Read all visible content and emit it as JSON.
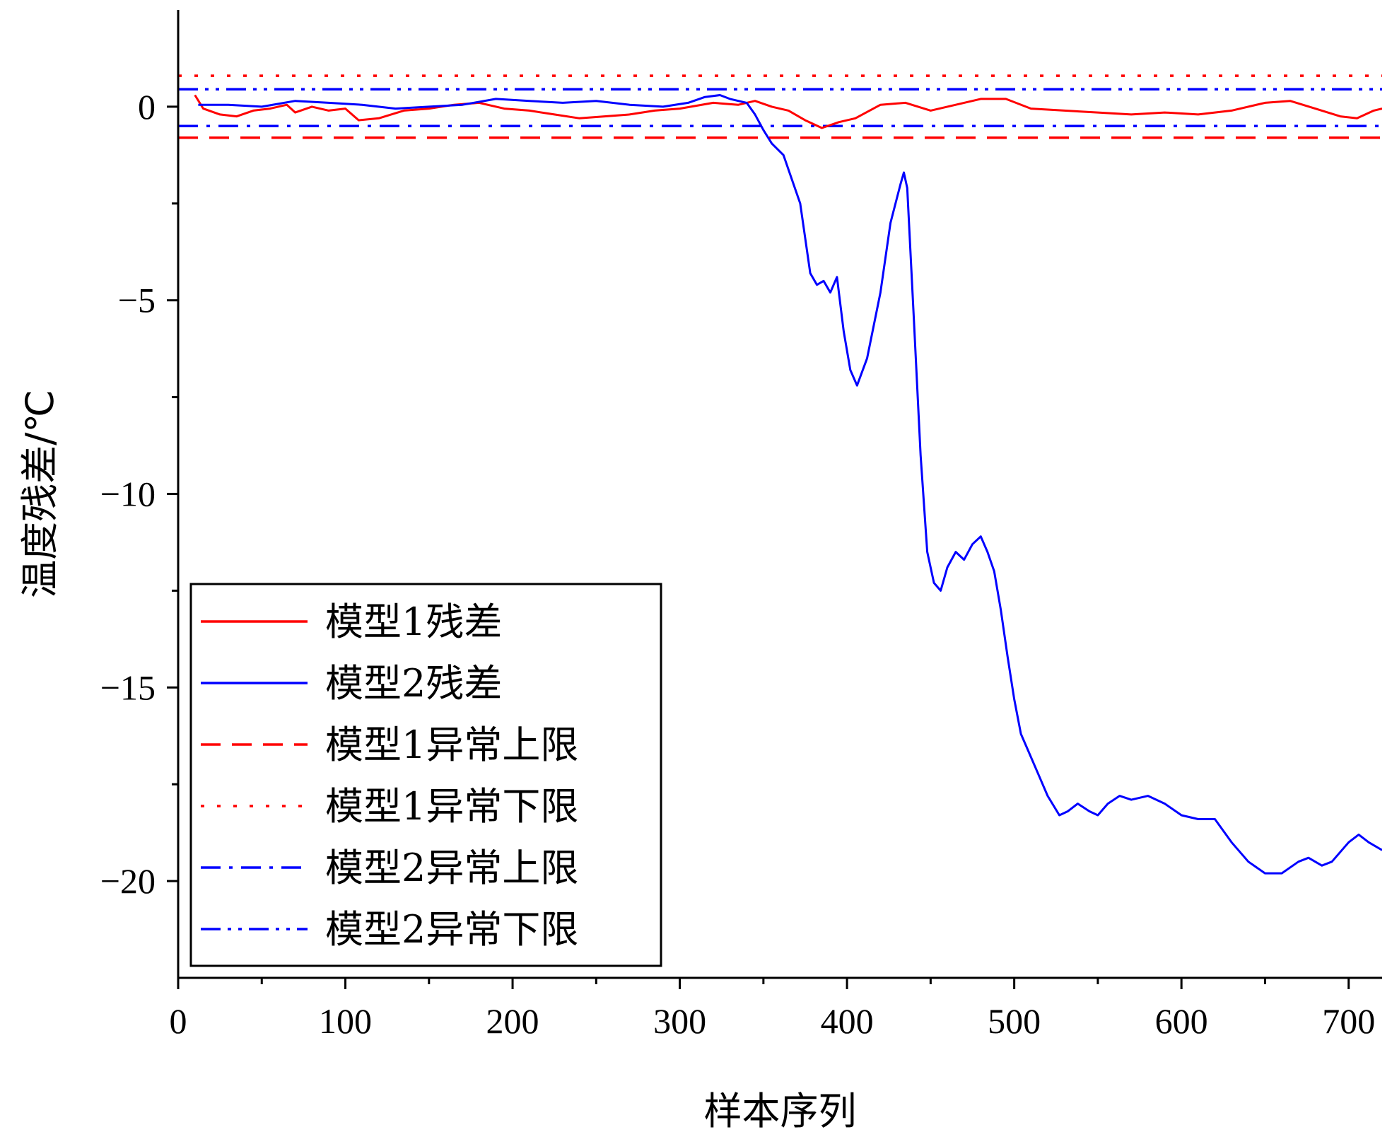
{
  "chart_data": {
    "type": "line",
    "title": "",
    "xlabel": "样本序列",
    "ylabel": "温度残差/℃",
    "xlim": [
      0,
      720
    ],
    "ylim": [
      -22.5,
      2.5
    ],
    "xticks": [
      0,
      100,
      200,
      300,
      400,
      500,
      600,
      700
    ],
    "xtick_labels": [
      "0",
      "100",
      "200",
      "300",
      "400",
      "500",
      "600",
      "700"
    ],
    "yticks": [
      0,
      -5,
      -10,
      -15,
      -20
    ],
    "ytick_labels": [
      "0",
      "−5",
      "−10",
      "−15",
      "−20"
    ],
    "grid": false,
    "legend_position": "lower-left",
    "series": [
      {
        "name": "模型1残差",
        "color": "#ff0000",
        "style": "solid",
        "x": [
          10,
          15,
          25,
          35,
          45,
          55,
          65,
          70,
          80,
          90,
          100,
          108,
          120,
          135,
          150,
          165,
          180,
          195,
          210,
          225,
          240,
          255,
          270,
          285,
          300,
          320,
          335,
          345,
          355,
          365,
          375,
          385,
          395,
          405,
          420,
          435,
          450,
          465,
          480,
          495,
          510,
          530,
          550,
          570,
          590,
          610,
          630,
          650,
          665,
          680,
          695,
          705,
          715,
          720
        ],
        "values": [
          0.3,
          -0.05,
          -0.2,
          -0.25,
          -0.1,
          -0.05,
          0.05,
          -0.15,
          0.0,
          -0.1,
          -0.05,
          -0.35,
          -0.3,
          -0.1,
          -0.05,
          0.05,
          0.1,
          -0.05,
          -0.1,
          -0.2,
          -0.3,
          -0.25,
          -0.2,
          -0.1,
          -0.05,
          0.1,
          0.05,
          0.15,
          0.0,
          -0.1,
          -0.35,
          -0.55,
          -0.4,
          -0.3,
          0.05,
          0.1,
          -0.1,
          0.05,
          0.2,
          0.2,
          -0.05,
          -0.1,
          -0.15,
          -0.2,
          -0.15,
          -0.2,
          -0.1,
          0.1,
          0.15,
          -0.05,
          -0.25,
          -0.3,
          -0.1,
          -0.05
        ]
      },
      {
        "name": "模型2残差",
        "color": "#0000ff",
        "style": "solid",
        "x": [
          12,
          30,
          50,
          70,
          90,
          110,
          130,
          150,
          170,
          190,
          210,
          230,
          250,
          270,
          290,
          305,
          315,
          324,
          330,
          340,
          345,
          350,
          355,
          362,
          372,
          378,
          382,
          386,
          390,
          394,
          398,
          402,
          406,
          412,
          420,
          426,
          432,
          434,
          436,
          440,
          444,
          448,
          452,
          456,
          460,
          465,
          470,
          475,
          480,
          484,
          488,
          492,
          496,
          500,
          504,
          508,
          514,
          520,
          527,
          532,
          538,
          545,
          550,
          556,
          563,
          570,
          580,
          590,
          600,
          610,
          620,
          630,
          640,
          650,
          660,
          670,
          676,
          684,
          690,
          700,
          706,
          712,
          720
        ],
        "values": [
          0.05,
          0.05,
          0.0,
          0.15,
          0.1,
          0.05,
          -0.05,
          0.0,
          0.05,
          0.2,
          0.15,
          0.1,
          0.15,
          0.05,
          0.0,
          0.1,
          0.25,
          0.3,
          0.2,
          0.1,
          -0.2,
          -0.6,
          -0.95,
          -1.25,
          -2.5,
          -4.3,
          -4.6,
          -4.5,
          -4.8,
          -4.4,
          -5.8,
          -6.8,
          -7.2,
          -6.5,
          -4.8,
          -3.0,
          -2.0,
          -1.7,
          -2.1,
          -5.5,
          -9.0,
          -11.5,
          -12.3,
          -12.5,
          -11.9,
          -11.5,
          -11.7,
          -11.3,
          -11.1,
          -11.5,
          -12.0,
          -13.0,
          -14.2,
          -15.3,
          -16.2,
          -16.6,
          -17.2,
          -17.8,
          -18.3,
          -18.2,
          -18.0,
          -18.2,
          -18.3,
          -18.0,
          -17.8,
          -17.9,
          -17.8,
          -18.0,
          -18.3,
          -18.4,
          -18.4,
          -19.0,
          -19.5,
          -19.8,
          -19.8,
          -19.5,
          -19.4,
          -19.6,
          -19.5,
          -19.0,
          -18.8,
          -19.0,
          -19.2
        ]
      },
      {
        "name": "模型1异常上限",
        "color": "#ff0000",
        "style": "dashed",
        "x": [
          0,
          720
        ],
        "values": [
          -0.8,
          -0.8
        ]
      },
      {
        "name": "模型1异常下限",
        "color": "#ff0000",
        "style": "dotted",
        "x": [
          0,
          720
        ],
        "values": [
          0.8,
          0.8
        ]
      },
      {
        "name": "模型2异常上限",
        "color": "#0000ff",
        "style": "dashdot",
        "x": [
          0,
          720
        ],
        "values": [
          -0.5,
          -0.5
        ]
      },
      {
        "name": "模型2异常下限",
        "color": "#0000ff",
        "style": "dashdotdot",
        "x": [
          0,
          720
        ],
        "values": [
          0.45,
          0.45
        ]
      }
    ]
  }
}
